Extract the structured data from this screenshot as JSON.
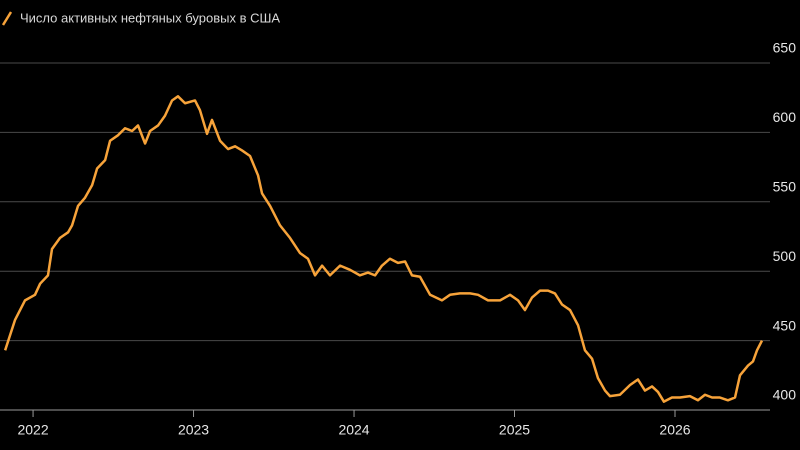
{
  "chart_data": {
    "type": "line",
    "legend_position": "top-left",
    "grid": true,
    "xlim": [
      2021.794,
      2026.592
    ],
    "xticks": [
      2022,
      2023,
      2024,
      2025,
      2026
    ],
    "ylim": [
      400,
      650
    ],
    "yticks": [
      400,
      450,
      500,
      550,
      600,
      650
    ],
    "x": [
      2021.826,
      2021.888,
      2021.95,
      2022.012,
      2022.044,
      2022.093,
      2022.118,
      2022.168,
      2022.218,
      2022.243,
      2022.28,
      2022.324,
      2022.368,
      2022.399,
      2022.449,
      2022.48,
      2022.53,
      2022.573,
      2022.617,
      2022.654,
      2022.698,
      2022.729,
      2022.779,
      2022.822,
      2022.866,
      2022.903,
      2022.947,
      2023.009,
      2023.04,
      2023.084,
      2023.115,
      2023.165,
      2023.215,
      2023.259,
      2023.302,
      2023.352,
      2023.402,
      2023.427,
      2023.477,
      2023.539,
      2023.601,
      2023.664,
      2023.713,
      2023.757,
      2023.801,
      2023.85,
      2023.913,
      2023.975,
      2024.037,
      2024.087,
      2024.131,
      2024.174,
      2024.224,
      2024.274,
      2024.318,
      2024.361,
      2024.411,
      2024.474,
      2024.548,
      2024.598,
      2024.66,
      2024.723,
      2024.773,
      2024.835,
      2024.91,
      2024.972,
      2025.022,
      2025.065,
      2025.109,
      2025.159,
      2025.209,
      2025.252,
      2025.296,
      2025.346,
      2025.396,
      2025.439,
      2025.483,
      2025.52,
      2025.564,
      2025.595,
      2025.657,
      2025.72,
      2025.769,
      2025.813,
      2025.857,
      2025.894,
      2025.931,
      2025.981,
      2026.031,
      2026.093,
      2026.143,
      2026.187,
      2026.231,
      2026.28,
      2026.33,
      2026.374,
      2026.405,
      2026.455,
      2026.486,
      2026.511,
      2026.542
    ],
    "series": [
      {
        "name": "Число активных нефтяных буровых в США",
        "color": "#f7a33a",
        "values": [
          443,
          465,
          479,
          483,
          491,
          497,
          516,
          524,
          528,
          533,
          547,
          553,
          562,
          574,
          580,
          594,
          598,
          603,
          601,
          605,
          592,
          601,
          605,
          612,
          623,
          626,
          621,
          623,
          616,
          599,
          609,
          594,
          588,
          590,
          587,
          583,
          569,
          556,
          547,
          533,
          524,
          513,
          509,
          497,
          504,
          497,
          504,
          501,
          497,
          499,
          497,
          504,
          509,
          506,
          507,
          497,
          496,
          483,
          479,
          483,
          484,
          484,
          483,
          479,
          479,
          483,
          479,
          472,
          481,
          486,
          486,
          484,
          476,
          472,
          461,
          443,
          437,
          423,
          414,
          410,
          411,
          418,
          422,
          414,
          417,
          413,
          406,
          409,
          409,
          410,
          407,
          411,
          409,
          409,
          407,
          409,
          425,
          432,
          435,
          443,
          450
        ]
      }
    ]
  }
}
